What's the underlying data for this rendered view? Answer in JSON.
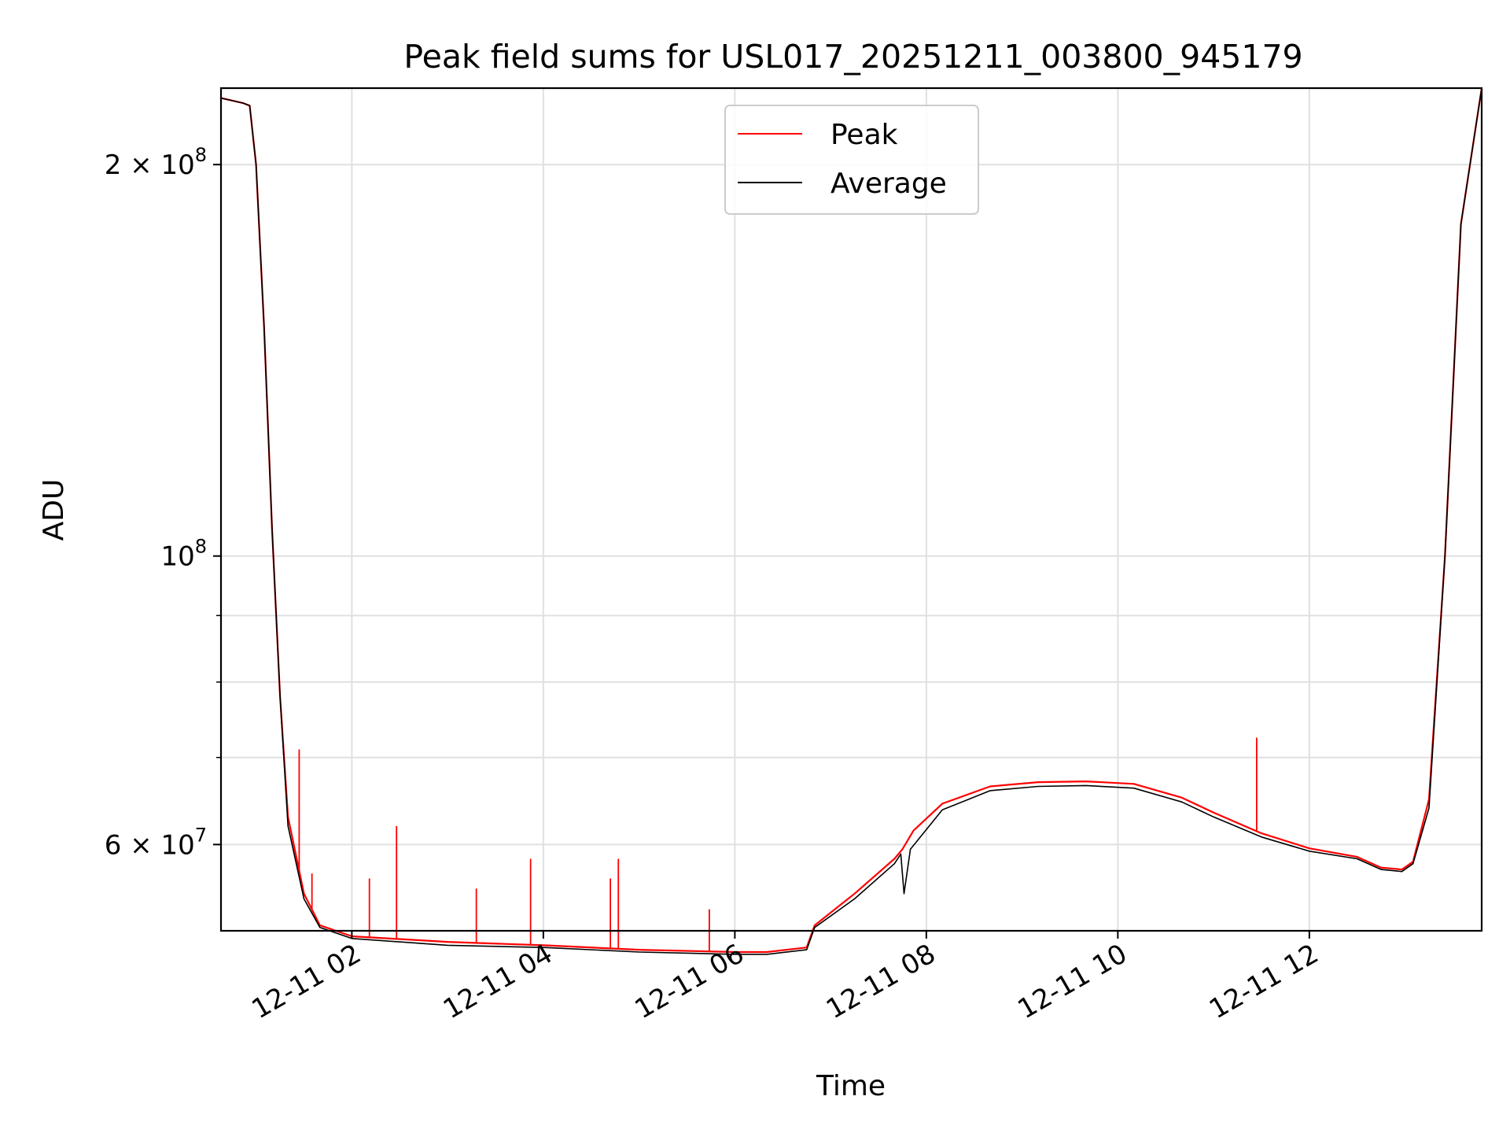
{
  "chart_data": {
    "type": "line",
    "title": "Peak field sums for USL017_20251211_003800_945179",
    "xlabel": "Time",
    "ylabel": "ADU",
    "yscale": "log",
    "xlim": [
      "2025-12-11 00:38",
      "2025-12-11 13:48"
    ],
    "ylim": [
      51500000,
      229000000
    ],
    "grid": true,
    "legend_position": "upper center",
    "x_ticks": [
      {
        "value": "2025-12-11 02:00",
        "label": "12-11 02"
      },
      {
        "value": "2025-12-11 04:00",
        "label": "12-11 04"
      },
      {
        "value": "2025-12-11 06:00",
        "label": "12-11 06"
      },
      {
        "value": "2025-12-11 08:00",
        "label": "12-11 08"
      },
      {
        "value": "2025-12-11 10:00",
        "label": "12-11 10"
      },
      {
        "value": "2025-12-11 12:00",
        "label": "12-11 12"
      }
    ],
    "y_major_ticks": [
      {
        "value": 60000000,
        "base": "6 × 10",
        "exp": "7"
      },
      {
        "value": 100000000,
        "base": "10",
        "exp": "8"
      },
      {
        "value": 200000000,
        "base": "2 × 10",
        "exp": "8"
      }
    ],
    "y_minor_ticks": [
      60000000,
      70000000,
      80000000,
      90000000,
      100000000,
      200000000
    ],
    "series": [
      {
        "name": "Peak",
        "color": "#ff0000",
        "x": [
          "2025-12-11 00:38",
          "2025-12-11 00:52",
          "2025-12-11 00:56",
          "2025-12-11 01:00",
          "2025-12-11 01:05",
          "2025-12-11 01:10",
          "2025-12-11 01:15",
          "2025-12-11 01:20",
          "2025-12-11 01:30",
          "2025-12-11 01:40",
          "2025-12-11 02:00",
          "2025-12-11 03:00",
          "2025-12-11 04:00",
          "2025-12-11 05:00",
          "2025-12-11 06:00",
          "2025-12-11 06:20",
          "2025-12-11 06:45",
          "2025-12-11 06:50",
          "2025-12-11 07:15",
          "2025-12-11 07:40",
          "2025-12-11 07:45",
          "2025-12-11 07:52",
          "2025-12-11 08:10",
          "2025-12-11 08:40",
          "2025-12-11 09:10",
          "2025-12-11 09:40",
          "2025-12-11 10:10",
          "2025-12-11 10:40",
          "2025-12-11 11:00",
          "2025-12-11 11:30",
          "2025-12-11 12:00",
          "2025-12-11 12:30",
          "2025-12-11 12:45",
          "2025-12-11 12:58",
          "2025-12-11 13:05",
          "2025-12-11 13:15",
          "2025-12-11 13:25",
          "2025-12-11 13:35",
          "2025-12-11 13:48"
        ],
        "y": [
          225000000,
          223000000,
          222000000,
          200000000,
          150000000,
          105000000,
          78000000,
          63000000,
          55000000,
          52000000,
          51000000,
          50500000,
          50200000,
          49800000,
          49600000,
          49600000,
          50000000,
          52000000,
          55000000,
          58500000,
          59500000,
          61500000,
          64500000,
          66500000,
          67000000,
          67100000,
          66800000,
          65200000,
          63500000,
          61200000,
          59600000,
          58700000,
          57600000,
          57400000,
          58200000,
          65000000,
          100000000,
          180000000,
          229000000
        ],
        "spikes": [
          {
            "x": "2025-12-11 01:27",
            "y": 71000000
          },
          {
            "x": "2025-12-11 01:35",
            "y": 57000000
          },
          {
            "x": "2025-12-11 02:11",
            "y": 56500000
          },
          {
            "x": "2025-12-11 02:28",
            "y": 62000000
          },
          {
            "x": "2025-12-11 03:18",
            "y": 55500000
          },
          {
            "x": "2025-12-11 03:52",
            "y": 58500000
          },
          {
            "x": "2025-12-11 04:42",
            "y": 56500000
          },
          {
            "x": "2025-12-11 04:47",
            "y": 58500000
          },
          {
            "x": "2025-12-11 05:44",
            "y": 53500000
          },
          {
            "x": "2025-12-11 11:27",
            "y": 72500000
          }
        ]
      },
      {
        "name": "Average",
        "color": "#000000",
        "x": [
          "2025-12-11 00:38",
          "2025-12-11 00:52",
          "2025-12-11 00:56",
          "2025-12-11 01:00",
          "2025-12-11 01:05",
          "2025-12-11 01:10",
          "2025-12-11 01:15",
          "2025-12-11 01:20",
          "2025-12-11 01:30",
          "2025-12-11 01:40",
          "2025-12-11 02:00",
          "2025-12-11 03:00",
          "2025-12-11 04:00",
          "2025-12-11 05:00",
          "2025-12-11 06:00",
          "2025-12-11 06:20",
          "2025-12-11 06:45",
          "2025-12-11 06:50",
          "2025-12-11 07:15",
          "2025-12-11 07:40",
          "2025-12-11 07:44",
          "2025-12-11 07:46",
          "2025-12-11 07:50",
          "2025-12-11 08:10",
          "2025-12-11 08:40",
          "2025-12-11 09:10",
          "2025-12-11 09:40",
          "2025-12-11 10:10",
          "2025-12-11 10:40",
          "2025-12-11 11:00",
          "2025-12-11 11:30",
          "2025-12-11 12:00",
          "2025-12-11 12:30",
          "2025-12-11 12:45",
          "2025-12-11 12:58",
          "2025-12-11 13:05",
          "2025-12-11 13:15",
          "2025-12-11 13:25",
          "2025-12-11 13:35",
          "2025-12-11 13:48"
        ],
        "y": [
          225000000,
          223000000,
          222000000,
          200000000,
          150000000,
          105000000,
          78000000,
          62000000,
          54500000,
          51800000,
          50800000,
          50200000,
          50000000,
          49600000,
          49400000,
          49400000,
          49800000,
          51800000,
          54500000,
          58000000,
          59000000,
          55000000,
          59500000,
          63800000,
          66000000,
          66500000,
          66600000,
          66300000,
          64700000,
          63000000,
          60800000,
          59300000,
          58500000,
          57400000,
          57200000,
          58000000,
          64000000,
          100000000,
          180000000,
          229000000
        ]
      }
    ]
  }
}
